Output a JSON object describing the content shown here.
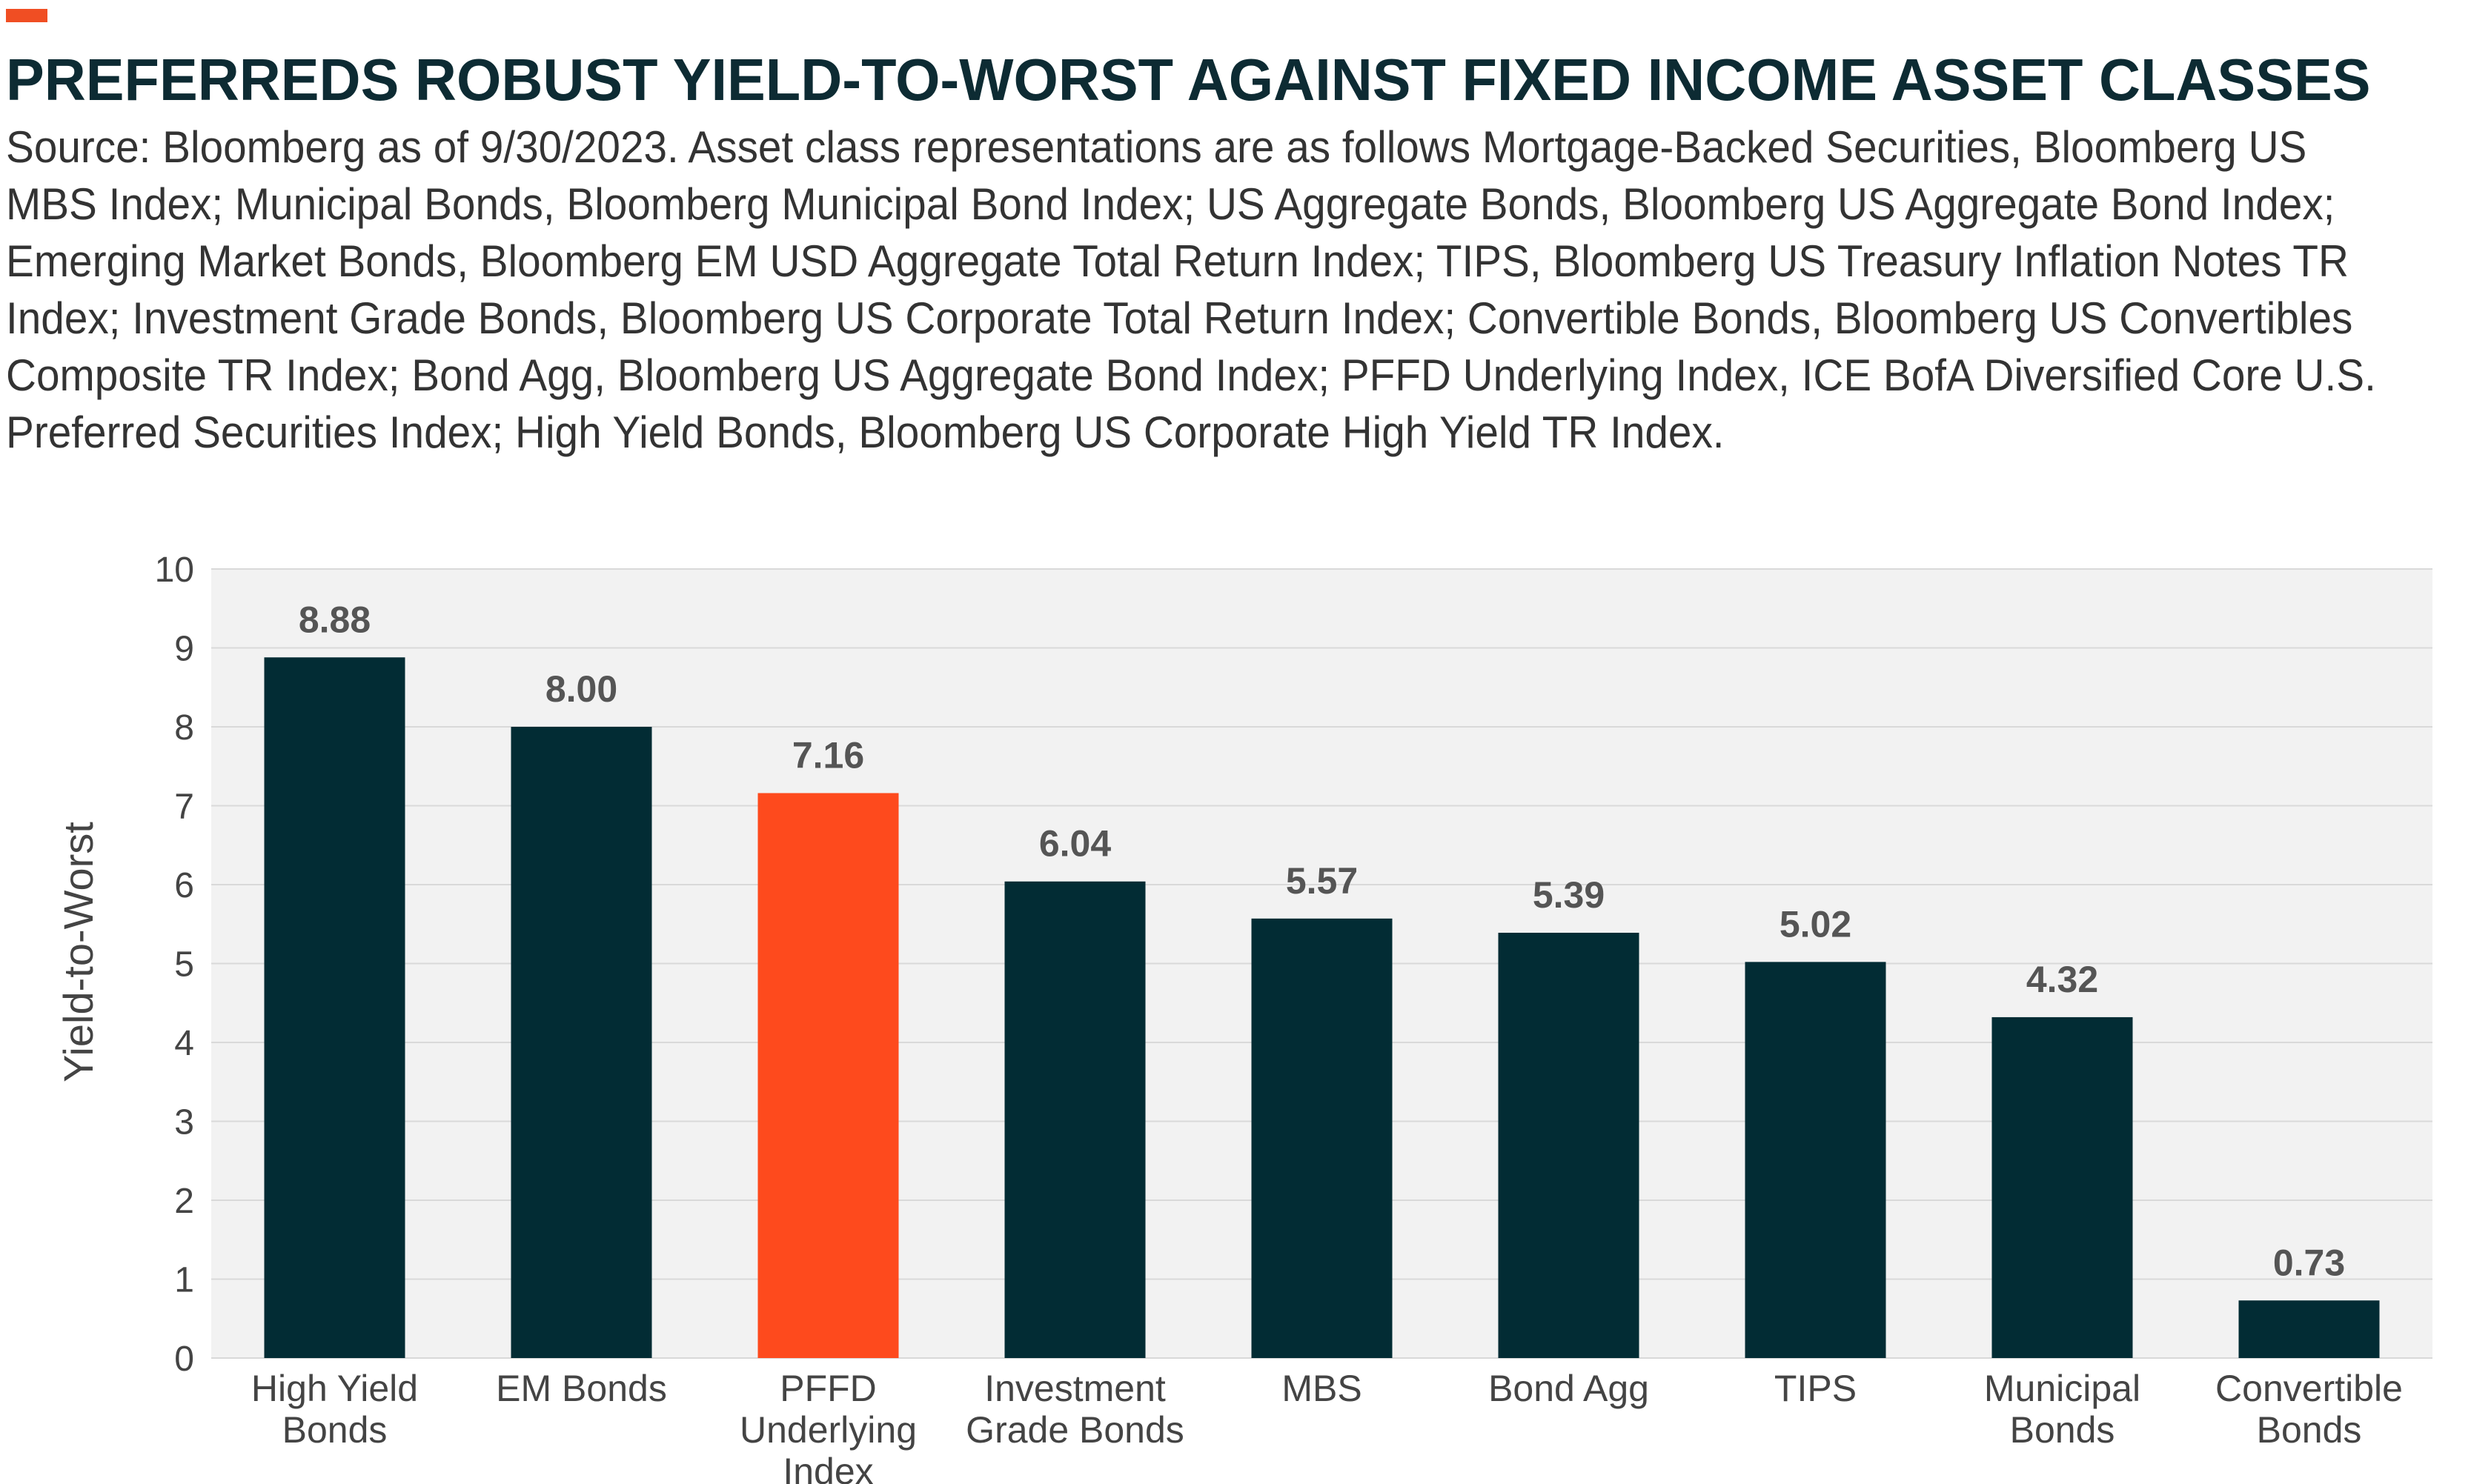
{
  "header": {
    "title": "PREFERREDS ROBUST YIELD-TO-WORST AGAINST FIXED INCOME ASSET CLASSES",
    "source": "Source: Bloomberg as of 9/30/2023. Asset class representations are as follows Mortgage-Backed Securities, Bloomberg US MBS Index; Municipal Bonds, Bloomberg Municipal Bond Index; US Aggregate Bonds, Bloomberg US Aggregate Bond Index; Emerging Market Bonds, Bloomberg EM USD Aggregate Total Return Index; TIPS, Bloomberg US Treasury Inflation Notes TR Index; Investment Grade Bonds, Bloomberg US Corporate Total Return Index; Convertible Bonds, Bloomberg US Convertibles Composite TR Index; Bond Agg, Bloomberg US Aggregate Bond Index; PFFD Underlying Index, ICE BofA Diversified Core U.S. Preferred Securities Index; High Yield Bonds, Bloomberg US Corporate High Yield TR Index."
  },
  "colors": {
    "accent": "#f04e23",
    "bar_default": "#022c34",
    "bar_highlight": "#fe4a1d",
    "plot_background": "#f2f2f2",
    "gridline": "#d9d9d9"
  },
  "chart_data": {
    "type": "bar",
    "title": "PREFERREDS ROBUST YIELD-TO-WORST AGAINST FIXED INCOME ASSET CLASSES",
    "xlabel": "",
    "ylabel": "Yield-to-Worst",
    "ylim": [
      0,
      10
    ],
    "yticks": [
      0,
      1,
      2,
      3,
      4,
      5,
      6,
      7,
      8,
      9,
      10
    ],
    "grid": true,
    "legend": "none",
    "categories": [
      [
        "High Yield",
        "Bonds"
      ],
      [
        "EM Bonds"
      ],
      [
        "PFFD",
        "Underlying",
        "Index"
      ],
      [
        "Investment",
        "Grade Bonds"
      ],
      [
        "MBS"
      ],
      [
        "Bond Agg"
      ],
      [
        "TIPS"
      ],
      [
        "Municipal",
        "Bonds"
      ],
      [
        "Convertible",
        "Bonds"
      ]
    ],
    "values": [
      8.88,
      8.0,
      7.16,
      6.04,
      5.57,
      5.39,
      5.02,
      4.32,
      0.73
    ],
    "data_labels": [
      "8.88",
      "8.00",
      "7.16",
      "6.04",
      "5.57",
      "5.39",
      "5.02",
      "4.32",
      "0.73"
    ],
    "highlight_index": 2
  }
}
